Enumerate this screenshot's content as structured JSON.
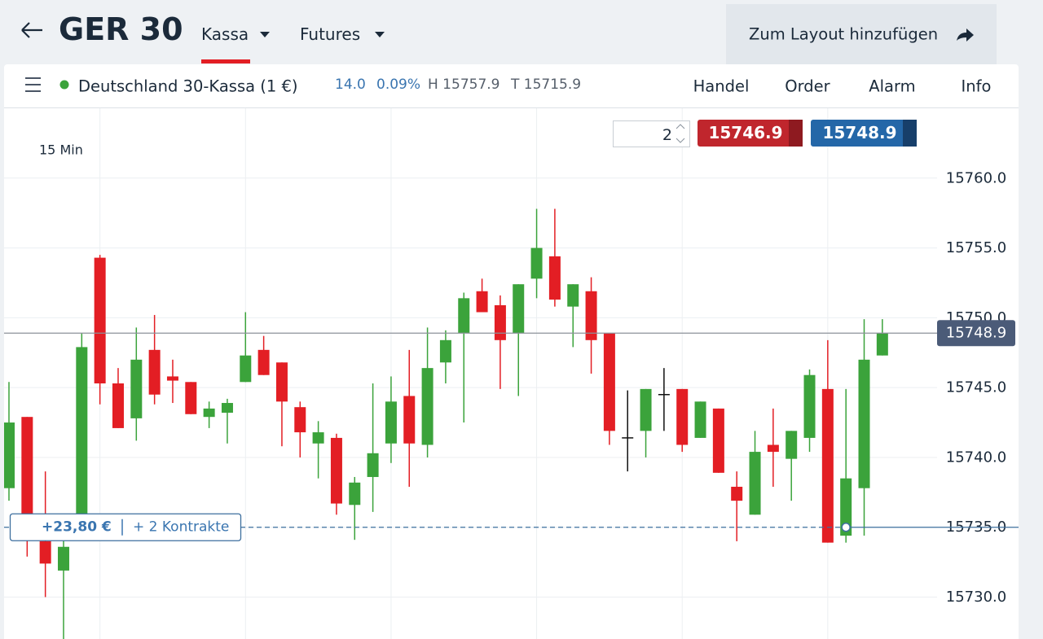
{
  "header": {
    "title": "GER 30",
    "tabs": [
      "Kassa",
      "Futures"
    ],
    "button": "Zum Layout hinzufügen"
  },
  "toolbar": {
    "instrument": "Deutschland 30-Kassa (1 €)",
    "change": "14.0",
    "change_pct": "0.09%",
    "high": "H 15757.9",
    "low": "T 15715.9",
    "menu": [
      "Handel",
      "Order",
      "Alarm",
      "Info"
    ]
  },
  "trade": {
    "quantity": "2",
    "sell": "15746.9",
    "buy": "15748.9"
  },
  "chart_data": {
    "type": "candlestick",
    "interval": "15 Min",
    "categories": [
      null,
      null,
      null,
      null,
      null,
      null,
      null,
      null,
      null,
      null,
      null,
      null,
      null,
      null,
      null,
      null,
      null,
      null,
      null,
      null,
      null,
      null,
      null,
      null,
      null,
      null,
      null,
      null,
      null,
      null,
      null,
      null,
      null,
      null,
      null,
      null,
      null,
      null,
      null,
      null,
      null,
      null,
      null,
      null,
      null,
      null,
      null,
      null,
      null
    ],
    "open": [
      15737.8,
      15742.9,
      15734.0,
      15731.9,
      15734.9,
      15754.3,
      15745.3,
      15742.8,
      15747.7,
      15745.8,
      15745.4,
      15742.9,
      15743.2,
      15745.4,
      15747.7,
      15746.8,
      15743.6,
      15741.0,
      15741.4,
      15736.6,
      15738.6,
      15741.0,
      15744.4,
      15740.9,
      15746.8,
      15748.9,
      15751.9,
      15750.9,
      15748.9,
      15752.8,
      15754.4,
      15750.8,
      15751.9,
      15748.9,
      15741.4,
      15741.9,
      15744.5,
      15744.9,
      15741.4,
      15743.5,
      15737.9,
      15735.9,
      15740.9,
      15739.9,
      15741.4,
      15744.9,
      15734.4,
      15737.8,
      15747.3
    ],
    "high": [
      15745.4,
      15742.9,
      15739.0,
      15734.9,
      15748.9,
      15754.5,
      15746.4,
      15749.3,
      15750.2,
      15747.0,
      15745.4,
      15744.0,
      15744.2,
      15750.4,
      15748.7,
      15746.8,
      15744.0,
      15742.6,
      15741.7,
      15738.6,
      15745.3,
      15745.8,
      15747.7,
      15749.3,
      15749.1,
      15751.8,
      15752.8,
      15751.6,
      15752.4,
      15757.8,
      15757.8,
      15752.4,
      15752.9,
      15748.9,
      15744.8,
      15744.9,
      15746.4,
      15744.9,
      15744.0,
      15743.5,
      15739.0,
      15741.9,
      15743.5,
      15741.9,
      15746.3,
      15748.4,
      15744.9,
      15749.9,
      15749.9
    ],
    "low": [
      15736.9,
      15732.9,
      15730.0,
      15727.0,
      15734.5,
      15743.8,
      15742.1,
      15741.2,
      15743.8,
      15743.9,
      15743.1,
      15742.1,
      15741.0,
      15745.4,
      15745.9,
      15740.8,
      15740.0,
      15738.5,
      15735.9,
      15734.1,
      15736.1,
      15739.6,
      15737.9,
      15740.0,
      15745.3,
      15742.5,
      15750.4,
      15744.9,
      15744.4,
      15751.4,
      15750.8,
      15747.9,
      15746.0,
      15740.9,
      15739.0,
      15740.0,
      15741.9,
      15740.4,
      15741.4,
      15738.9,
      15734.0,
      15735.9,
      15737.9,
      15736.9,
      15740.4,
      15733.9,
      15733.9,
      15734.4,
      15747.3
    ],
    "close": [
      15742.5,
      15734.9,
      15732.4,
      15733.6,
      15747.9,
      15745.3,
      15742.1,
      15747.0,
      15744.5,
      15745.5,
      15743.1,
      15743.5,
      15743.9,
      15747.3,
      15745.9,
      15744.0,
      15741.8,
      15741.8,
      15736.7,
      15738.2,
      15740.3,
      15744.0,
      15741.0,
      15746.4,
      15748.4,
      15751.4,
      15750.4,
      15748.4,
      15752.4,
      15755.0,
      15751.3,
      15752.4,
      15748.4,
      15741.9,
      15741.4,
      15744.9,
      15744.5,
      15740.9,
      15744.0,
      15738.9,
      15736.9,
      15740.4,
      15740.4,
      15741.9,
      15745.9,
      15733.9,
      15738.5,
      15747.0,
      15748.9
    ],
    "up_color": "#3ba33b",
    "down_color": "#e31e24",
    "neutral_color": "#111111",
    "ylim": [
      15727,
      15765
    ],
    "yticks": [
      {
        "value": 15730,
        "label": "15730.0"
      },
      {
        "value": 15735,
        "label": "15735.0"
      },
      {
        "value": 15740,
        "label": "15740.0"
      },
      {
        "value": 15745,
        "label": "15745.0"
      },
      {
        "value": 15750,
        "label": "15750.0"
      },
      {
        "value": 15755,
        "label": "15755.0"
      },
      {
        "value": 15760,
        "label": "15760.0"
      }
    ],
    "grid": true,
    "last_price": 15748.9,
    "position": {
      "level": 15735,
      "pnl": "+23,80 €",
      "contracts": "+ 2 Kontrakte"
    }
  }
}
